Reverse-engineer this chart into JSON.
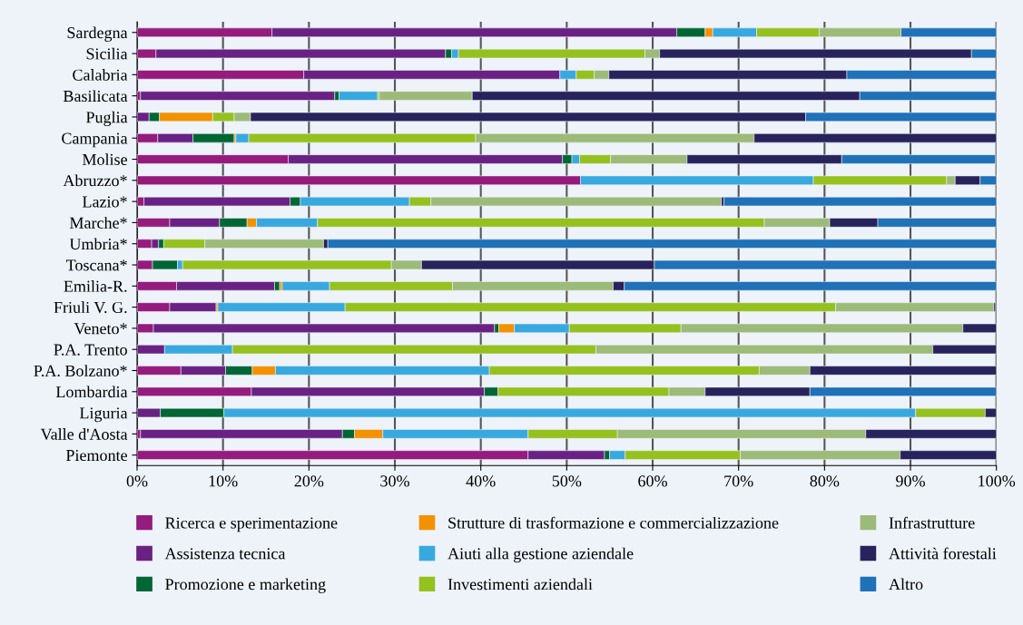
{
  "chart_data": {
    "type": "bar",
    "orientation": "horizontal",
    "stacked": true,
    "categories": [
      "Sardegna",
      "Sicilia",
      "Calabria",
      "Basilicata",
      "Puglia",
      "Campania",
      "Molise",
      "Abruzzo*",
      "Lazio*",
      "Marche*",
      "Umbria*",
      "Toscana*",
      "Emilia-R.",
      "Friuli V. G.",
      "Veneto*",
      "P.A. Trento",
      "P.A. Bolzano*",
      "Lombardia",
      "Liguria",
      "Valle d'Aosta",
      "Piemonte"
    ],
    "series": [
      {
        "name": "Ricerca e sperimentazione",
        "color": "#951b7d",
        "values": [
          15.7,
          2.2,
          19.4,
          0.4,
          null,
          2.4,
          17.6,
          51.6,
          0.8,
          3.8,
          1.7,
          1.8,
          4.6,
          3.8,
          1.9,
          null,
          5.1,
          13.3,
          null,
          0.4,
          45.5
        ]
      },
      {
        "name": "Assistenza tecnica",
        "color": "#692283",
        "values": [
          47.1,
          33.7,
          29.8,
          22.6,
          1.4,
          4.1,
          31.9,
          null,
          17.0,
          5.8,
          0.8,
          null,
          11.4,
          5.4,
          39.7,
          3.2,
          5.2,
          27.1,
          2.7,
          23.5,
          8.9
        ]
      },
      {
        "name": "Promozione e marketing",
        "color": "#006633",
        "values": [
          3.3,
          0.7,
          null,
          0.5,
          1.2,
          4.8,
          1.1,
          null,
          1.2,
          3.2,
          0.6,
          2.9,
          0.6,
          null,
          0.5,
          null,
          3.1,
          1.6,
          7.4,
          1.4,
          0.6
        ]
      },
      {
        "name": "Strutture di trasformazione e commercializzazione",
        "color": "#f39200",
        "values": [
          0.9,
          null,
          null,
          null,
          6.2,
          0.2,
          null,
          null,
          null,
          1.1,
          null,
          null,
          0.3,
          0.2,
          1.8,
          null,
          2.7,
          null,
          null,
          3.3,
          null
        ]
      },
      {
        "name": "Aiuti alla gestione aziendale",
        "color": "#38a9df",
        "values": [
          5.1,
          0.8,
          1.9,
          4.5,
          null,
          1.5,
          0.9,
          27.1,
          12.7,
          7.1,
          null,
          0.6,
          5.5,
          14.8,
          6.4,
          7.9,
          24.9,
          null,
          80.5,
          16.9,
          1.8
        ]
      },
      {
        "name": "Investimenti aziendali",
        "color": "#95c11f",
        "values": [
          7.3,
          21.7,
          2.1,
          0.2,
          2.5,
          26.4,
          3.6,
          15.5,
          2.5,
          52.0,
          4.8,
          24.3,
          14.3,
          57.1,
          13.0,
          42.3,
          31.4,
          19.9,
          8.1,
          10.4,
          13.4
        ]
      },
      {
        "name": "Infrastrutture",
        "color": "#9cba78",
        "values": [
          9.5,
          1.7,
          1.7,
          10.8,
          1.9,
          32.4,
          8.9,
          1.0,
          33.8,
          7.6,
          13.8,
          3.5,
          18.7,
          18.4,
          32.8,
          39.2,
          5.9,
          4.2,
          null,
          28.9,
          18.6
        ]
      },
      {
        "name": "Attività forestali",
        "color": "#29235c",
        "values": [
          null,
          36.3,
          27.7,
          45.1,
          64.6,
          28.2,
          18.0,
          2.9,
          0.3,
          5.6,
          0.5,
          27.1,
          1.3,
          0.2,
          3.9,
          7.4,
          21.7,
          12.2,
          1.3,
          15.2,
          11.2
        ]
      },
      {
        "name": "Altro",
        "color": "#1f71b8",
        "values": [
          11.1,
          2.9,
          17.4,
          15.9,
          22.2,
          null,
          17.9,
          1.9,
          31.7,
          13.8,
          77.8,
          39.8,
          43.3,
          null,
          null,
          null,
          null,
          21.7,
          null,
          null,
          null
        ]
      }
    ],
    "xlim": [
      0,
      100
    ],
    "xticks": [
      {
        "value": 0,
        "label": "0%"
      },
      {
        "value": 10,
        "label": "10%"
      },
      {
        "value": 20,
        "label": "20%"
      },
      {
        "value": 30,
        "label": "30%"
      },
      {
        "value": 40,
        "label": "40%"
      },
      {
        "value": 50,
        "label": "50%"
      },
      {
        "value": 60,
        "label": "60%"
      },
      {
        "value": 70,
        "label": "70%"
      },
      {
        "value": 80,
        "label": "80%"
      },
      {
        "value": 90,
        "label": "90%"
      },
      {
        "value": 100,
        "label": "100%"
      }
    ],
    "grid": "x",
    "legend": "bottom"
  }
}
